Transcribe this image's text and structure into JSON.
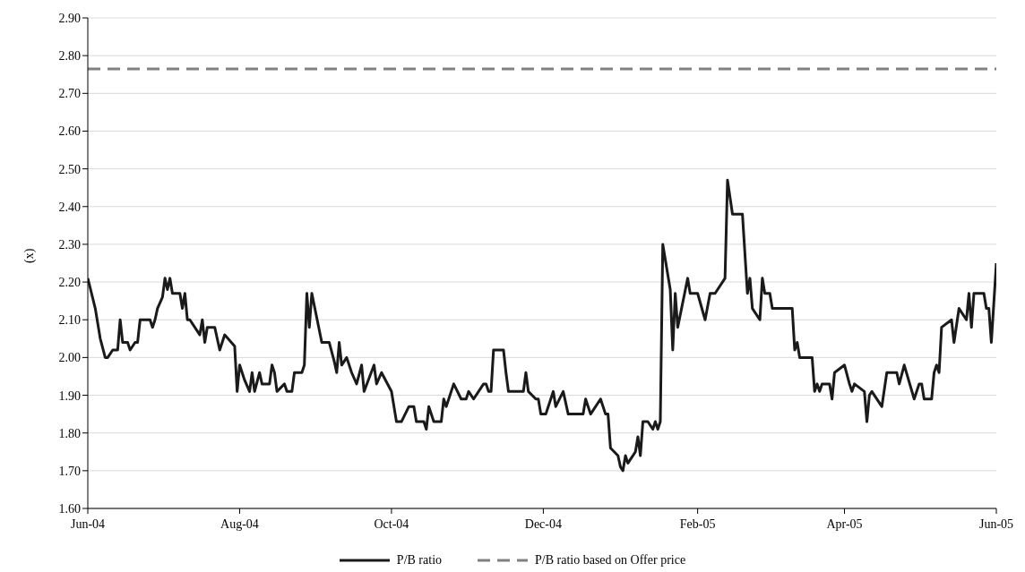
{
  "chart_data": {
    "type": "line",
    "ylabel": "(x)",
    "x": [
      "2004-06-01",
      "2004-06-04",
      "2004-06-06",
      "2004-06-08",
      "2004-06-09",
      "2004-06-11",
      "2004-06-13",
      "2004-06-14",
      "2004-06-15",
      "2004-06-17",
      "2004-06-18",
      "2004-06-20",
      "2004-06-21",
      "2004-06-22",
      "2004-06-26",
      "2004-06-27",
      "2004-06-28",
      "2004-06-29",
      "2004-07-01",
      "2004-07-02",
      "2004-07-03",
      "2004-07-04",
      "2004-07-05",
      "2004-07-08",
      "2004-07-09",
      "2004-07-10",
      "2004-07-11",
      "2004-07-12",
      "2004-07-15",
      "2004-07-16",
      "2004-07-17",
      "2004-07-18",
      "2004-07-19",
      "2004-07-22",
      "2004-07-24",
      "2004-07-26",
      "2004-07-30",
      "2004-07-31",
      "2004-08-01",
      "2004-08-03",
      "2004-08-05",
      "2004-08-06",
      "2004-08-07",
      "2004-08-09",
      "2004-08-10",
      "2004-08-13",
      "2004-08-14",
      "2004-08-15",
      "2004-08-16",
      "2004-08-19",
      "2004-08-20",
      "2004-08-22",
      "2004-08-23",
      "2004-08-26",
      "2004-08-27",
      "2004-08-28",
      "2004-08-29",
      "2004-08-30",
      "2004-09-03",
      "2004-09-06",
      "2004-09-08",
      "2004-09-09",
      "2004-09-10",
      "2004-09-11",
      "2004-09-13",
      "2004-09-15",
      "2004-09-17",
      "2004-09-19",
      "2004-09-20",
      "2004-09-24",
      "2004-09-25",
      "2004-09-27",
      "2004-10-01",
      "2004-10-03",
      "2004-10-05",
      "2004-10-08",
      "2004-10-10",
      "2004-10-11",
      "2004-10-14",
      "2004-10-15",
      "2004-10-16",
      "2004-10-18",
      "2004-10-21",
      "2004-10-22",
      "2004-10-23",
      "2004-10-26",
      "2004-10-29",
      "2004-10-31",
      "2004-11-01",
      "2004-11-03",
      "2004-11-07",
      "2004-11-08",
      "2004-11-09",
      "2004-11-10",
      "2004-11-11",
      "2004-11-15",
      "2004-11-16",
      "2004-11-17",
      "2004-11-23",
      "2004-11-24",
      "2004-11-25",
      "2004-11-28",
      "2004-11-29",
      "2004-11-30",
      "2004-12-02",
      "2004-12-05",
      "2004-12-06",
      "2004-12-09",
      "2004-12-11",
      "2004-12-17",
      "2004-12-18",
      "2004-12-20",
      "2004-12-24",
      "2004-12-26",
      "2004-12-27",
      "2004-12-28",
      "2004-12-31",
      "2005-01-01",
      "2005-01-02",
      "2005-01-03",
      "2005-01-04",
      "2005-01-07",
      "2005-01-08",
      "2005-01-09",
      "2005-01-10",
      "2005-01-12",
      "2005-01-14",
      "2005-01-15",
      "2005-01-16",
      "2005-01-17",
      "2005-01-18",
      "2005-01-21",
      "2005-01-22",
      "2005-01-23",
      "2005-01-24",
      "2005-01-28",
      "2005-01-29",
      "2005-02-01",
      "2005-02-04",
      "2005-02-06",
      "2005-02-08",
      "2005-02-12",
      "2005-02-13",
      "2005-02-15",
      "2005-02-19",
      "2005-02-21",
      "2005-02-22",
      "2005-02-23",
      "2005-02-26",
      "2005-02-27",
      "2005-02-28",
      "2005-03-02",
      "2005-03-03",
      "2005-03-11",
      "2005-03-12",
      "2005-03-13",
      "2005-03-14",
      "2005-03-19",
      "2005-03-20",
      "2005-03-21",
      "2005-03-22",
      "2005-03-23",
      "2005-03-26",
      "2005-03-27",
      "2005-03-28",
      "2005-04-01",
      "2005-04-03",
      "2005-04-04",
      "2005-04-05",
      "2005-04-09",
      "2005-04-10",
      "2005-04-11",
      "2005-04-12",
      "2005-04-16",
      "2005-04-18",
      "2005-04-22",
      "2005-04-23",
      "2005-04-25",
      "2005-04-29",
      "2005-05-01",
      "2005-05-02",
      "2005-05-03",
      "2005-05-06",
      "2005-05-07",
      "2005-05-08",
      "2005-05-09",
      "2005-05-10",
      "2005-05-14",
      "2005-05-15",
      "2005-05-17",
      "2005-05-20",
      "2005-05-21",
      "2005-05-22",
      "2005-05-23",
      "2005-05-27",
      "2005-05-28",
      "2005-05-29",
      "2005-05-30",
      "2005-06-01"
    ],
    "series": [
      {
        "name": "P/B ratio",
        "color": "#1a1a1a",
        "values": [
          2.21,
          2.13,
          2.05,
          2.0,
          2.0,
          2.02,
          2.02,
          2.1,
          2.04,
          2.04,
          2.02,
          2.04,
          2.04,
          2.1,
          2.1,
          2.08,
          2.1,
          2.13,
          2.16,
          2.21,
          2.18,
          2.21,
          2.17,
          2.17,
          2.13,
          2.17,
          2.1,
          2.1,
          2.07,
          2.06,
          2.1,
          2.04,
          2.08,
          2.08,
          2.02,
          2.06,
          2.03,
          1.91,
          1.98,
          1.94,
          1.91,
          1.96,
          1.91,
          1.96,
          1.93,
          1.93,
          1.98,
          1.96,
          1.91,
          1.93,
          1.91,
          1.91,
          1.96,
          1.96,
          1.98,
          2.17,
          2.08,
          2.17,
          2.04,
          2.04,
          1.99,
          1.96,
          2.04,
          1.98,
          2.0,
          1.96,
          1.93,
          1.98,
          1.91,
          1.98,
          1.93,
          1.96,
          1.91,
          1.83,
          1.83,
          1.87,
          1.87,
          1.83,
          1.83,
          1.81,
          1.87,
          1.83,
          1.83,
          1.89,
          1.87,
          1.93,
          1.89,
          1.89,
          1.91,
          1.89,
          1.93,
          1.93,
          1.91,
          1.91,
          2.02,
          2.02,
          1.96,
          1.91,
          1.91,
          1.96,
          1.91,
          1.89,
          1.89,
          1.85,
          1.85,
          1.91,
          1.87,
          1.91,
          1.85,
          1.85,
          1.89,
          1.85,
          1.89,
          1.85,
          1.85,
          1.76,
          1.74,
          1.71,
          1.7,
          1.74,
          1.72,
          1.75,
          1.79,
          1.74,
          1.83,
          1.83,
          1.81,
          1.83,
          1.81,
          1.83,
          2.3,
          2.18,
          2.02,
          2.17,
          2.08,
          2.21,
          2.17,
          2.17,
          2.1,
          2.17,
          2.17,
          2.21,
          2.47,
          2.38,
          2.38,
          2.17,
          2.21,
          2.13,
          2.1,
          2.21,
          2.17,
          2.17,
          2.13,
          2.13,
          2.02,
          2.04,
          2.0,
          2.0,
          1.91,
          1.93,
          1.91,
          1.93,
          1.93,
          1.89,
          1.96,
          1.98,
          1.93,
          1.91,
          1.93,
          1.91,
          1.83,
          1.9,
          1.91,
          1.87,
          1.96,
          1.96,
          1.93,
          1.98,
          1.89,
          1.93,
          1.93,
          1.89,
          1.89,
          1.96,
          1.98,
          1.96,
          2.08,
          2.1,
          2.04,
          2.13,
          2.1,
          2.17,
          2.08,
          2.17,
          2.17,
          2.13,
          2.13,
          2.04,
          2.25
        ]
      }
    ],
    "ref_lines": [
      {
        "axis": "y",
        "value": 2.765,
        "label": "P/B ratio based on Offer price",
        "color": "#808080",
        "line_style": "dashed"
      }
    ],
    "xlim": [
      "2004-06-01",
      "2005-06-01"
    ],
    "xticks": [
      {
        "value": "2004-06-01",
        "label": "Jun-04"
      },
      {
        "value": "2004-08-01",
        "label": "Aug-04"
      },
      {
        "value": "2004-10-01",
        "label": "Oct-04"
      },
      {
        "value": "2004-12-01",
        "label": "Dec-04"
      },
      {
        "value": "2005-02-01",
        "label": "Feb-05"
      },
      {
        "value": "2005-04-01",
        "label": "Apr-05"
      },
      {
        "value": "2005-06-01",
        "label": "Jun-05"
      }
    ],
    "ylim": [
      1.6,
      2.9
    ],
    "yticks": [
      {
        "value": 1.6,
        "label": "1.60"
      },
      {
        "value": 1.7,
        "label": "1.70"
      },
      {
        "value": 1.8,
        "label": "1.80"
      },
      {
        "value": 1.9,
        "label": "1.90"
      },
      {
        "value": 2.0,
        "label": "2.00"
      },
      {
        "value": 2.1,
        "label": "2.10"
      },
      {
        "value": 2.2,
        "label": "2.20"
      },
      {
        "value": 2.3,
        "label": "2.30"
      },
      {
        "value": 2.4,
        "label": "2.40"
      },
      {
        "value": 2.5,
        "label": "2.50"
      },
      {
        "value": 2.6,
        "label": "2.60"
      },
      {
        "value": 2.7,
        "label": "2.70"
      },
      {
        "value": 2.8,
        "label": "2.80"
      },
      {
        "value": 2.9,
        "label": "2.90"
      }
    ],
    "grid": "y",
    "legend": "bottom"
  }
}
